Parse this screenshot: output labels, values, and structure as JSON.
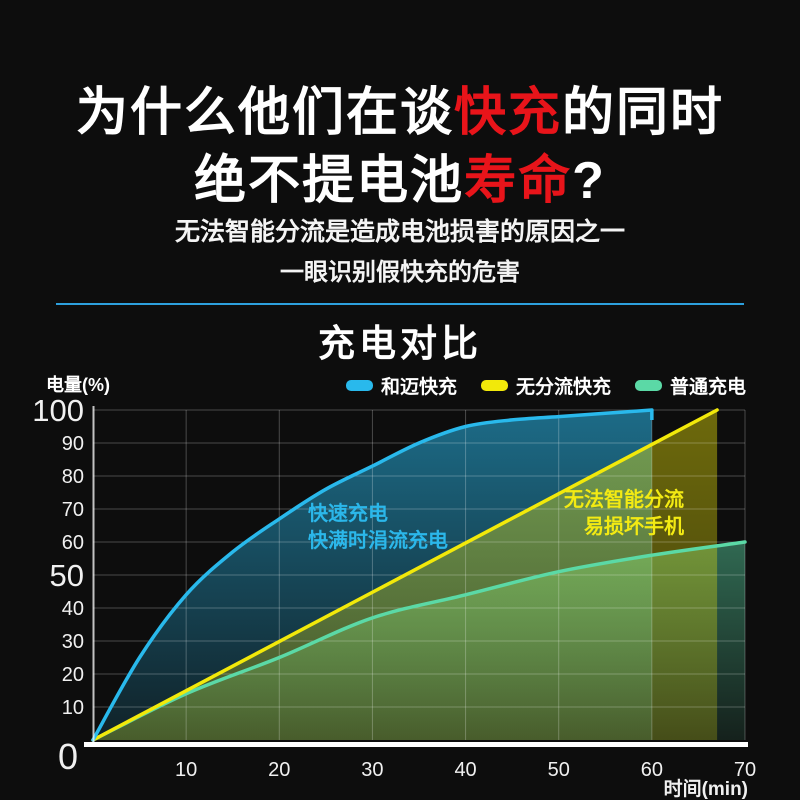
{
  "page": {
    "background": "#0d0d0d"
  },
  "header": {
    "title_line1": [
      {
        "t": "为什么他们在谈",
        "c": "#ffffff"
      },
      {
        "t": "快充",
        "c": "#e8141a"
      },
      {
        "t": "的同时",
        "c": "#ffffff"
      }
    ],
    "title_line2": [
      {
        "t": "绝不提电池",
        "c": "#ffffff"
      },
      {
        "t": "寿命",
        "c": "#e8141a"
      },
      {
        "t": "?",
        "c": "#ffffff"
      }
    ],
    "subtitle_line1": "无法智能分流是造成电池损害的原因之一",
    "subtitle_line2": "一眼识别假快充的危害",
    "divider_color": "#2da0dd"
  },
  "chart": {
    "section_title": "充电对比",
    "y_axis_label": "电量(%)",
    "x_axis_label": "时间(min)",
    "legend": [
      {
        "label": "和迈快充",
        "color": "#29b9ec"
      },
      {
        "label": "无分流快充",
        "color": "#f2e90a"
      },
      {
        "label": "普通充电",
        "color": "#5bd9a6"
      }
    ]
  },
  "chart_data": {
    "type": "area",
    "title": "充电对比",
    "xlabel": "时间(min)",
    "ylabel": "电量(%)",
    "xlim": [
      0,
      70
    ],
    "ylim": [
      0,
      100
    ],
    "x_ticks": [
      0,
      10,
      20,
      30,
      40,
      50,
      60,
      70
    ],
    "y_ticks": [
      0,
      10,
      20,
      30,
      40,
      50,
      60,
      70,
      80,
      90,
      100
    ],
    "emphasized_ticks": [
      0,
      50,
      100
    ],
    "grid": true,
    "legend_position": "top-right",
    "series": [
      {
        "name": "和迈快充",
        "color": "#29b9ec",
        "smooth": true,
        "x": [
          0,
          5,
          10,
          15,
          20,
          25,
          30,
          35,
          40,
          45,
          50,
          55,
          60
        ],
        "y": [
          0,
          25,
          44,
          57,
          67,
          76,
          83,
          90,
          95,
          97,
          98,
          99,
          100
        ]
      },
      {
        "name": "无分流快充",
        "color": "#f2e90a",
        "smooth": false,
        "x": [
          0,
          67
        ],
        "y": [
          0,
          100
        ]
      },
      {
        "name": "普通充电",
        "color": "#5bd9a6",
        "smooth": true,
        "x": [
          0,
          10,
          20,
          30,
          40,
          50,
          60,
          70
        ],
        "y": [
          0,
          14,
          25,
          37,
          44,
          51,
          56,
          60
        ]
      }
    ],
    "annotations": [
      {
        "lines": [
          "快速充电",
          "快满时涓流充电"
        ],
        "color": "#2bb7ea"
      },
      {
        "lines": [
          "无法智能分流",
          "易损坏手机"
        ],
        "color": "#f3ea13"
      }
    ]
  }
}
